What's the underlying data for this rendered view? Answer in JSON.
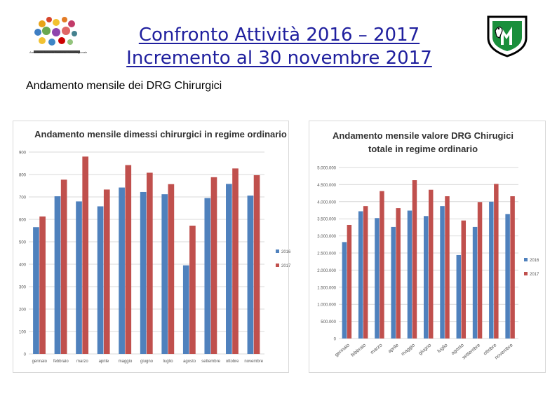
{
  "header": {
    "title_line1": "Confronto Attività 2016 – 2017",
    "title_line2": "Incremento al 30 novembre 2017",
    "subtitle": "Andamento mensile dei DRG Chirurgici",
    "left_logo_caption": "Area Vasta Azienda Sanitaria Unica Regionale"
  },
  "colors": {
    "series_2016": "#4f81bd",
    "series_2017": "#c0504d",
    "title": "#1f1f9e",
    "grid": "#d9d9d9"
  },
  "chart_data": [
    {
      "type": "bar",
      "title": "Andamento mensile  dimessi chirurgici in regime ordinario",
      "categories": [
        "gennaio",
        "febbraio",
        "marzo",
        "aprile",
        "maggio",
        "giugno",
        "luglio",
        "agosto",
        "settembre",
        "ottobre",
        "novembre"
      ],
      "series": [
        {
          "name": "2016",
          "values": [
            565,
            703,
            680,
            658,
            742,
            722,
            712,
            395,
            695,
            758,
            706
          ]
        },
        {
          "name": "2017",
          "values": [
            613,
            777,
            880,
            733,
            842,
            808,
            757,
            572,
            788,
            827,
            797
          ]
        }
      ],
      "yticks": [
        "0",
        "100",
        "200",
        "300",
        "400",
        "500",
        "600",
        "700",
        "800",
        "900"
      ],
      "ylim": [
        0,
        900
      ],
      "legend": "right"
    },
    {
      "type": "bar",
      "title": "Andamento mensile  valore DRG Chirugici totale in regime ordinario",
      "categories": [
        "gennaio",
        "febbraio",
        "marzo",
        "aprile",
        "maggio",
        "giugno",
        "luglio",
        "agosto",
        "settembre",
        "ottobre",
        "novembre"
      ],
      "series": [
        {
          "name": "2016",
          "values": [
            2820000,
            3720000,
            3520000,
            3260000,
            3740000,
            3580000,
            3870000,
            2440000,
            3260000,
            4000000,
            3640000
          ]
        },
        {
          "name": "2017",
          "values": [
            3320000,
            3870000,
            4310000,
            3810000,
            4630000,
            4350000,
            4160000,
            3450000,
            3990000,
            4520000,
            4160000
          ]
        }
      ],
      "yticks": [
        "0",
        "500.000",
        "1.000.000",
        "1.500.000",
        "2.000.000",
        "2.500.000",
        "3.000.000",
        "3.500.000",
        "4.000.000",
        "4.500.000",
        "5.000.000"
      ],
      "ylim": [
        0,
        5000000
      ],
      "legend": "right"
    }
  ]
}
